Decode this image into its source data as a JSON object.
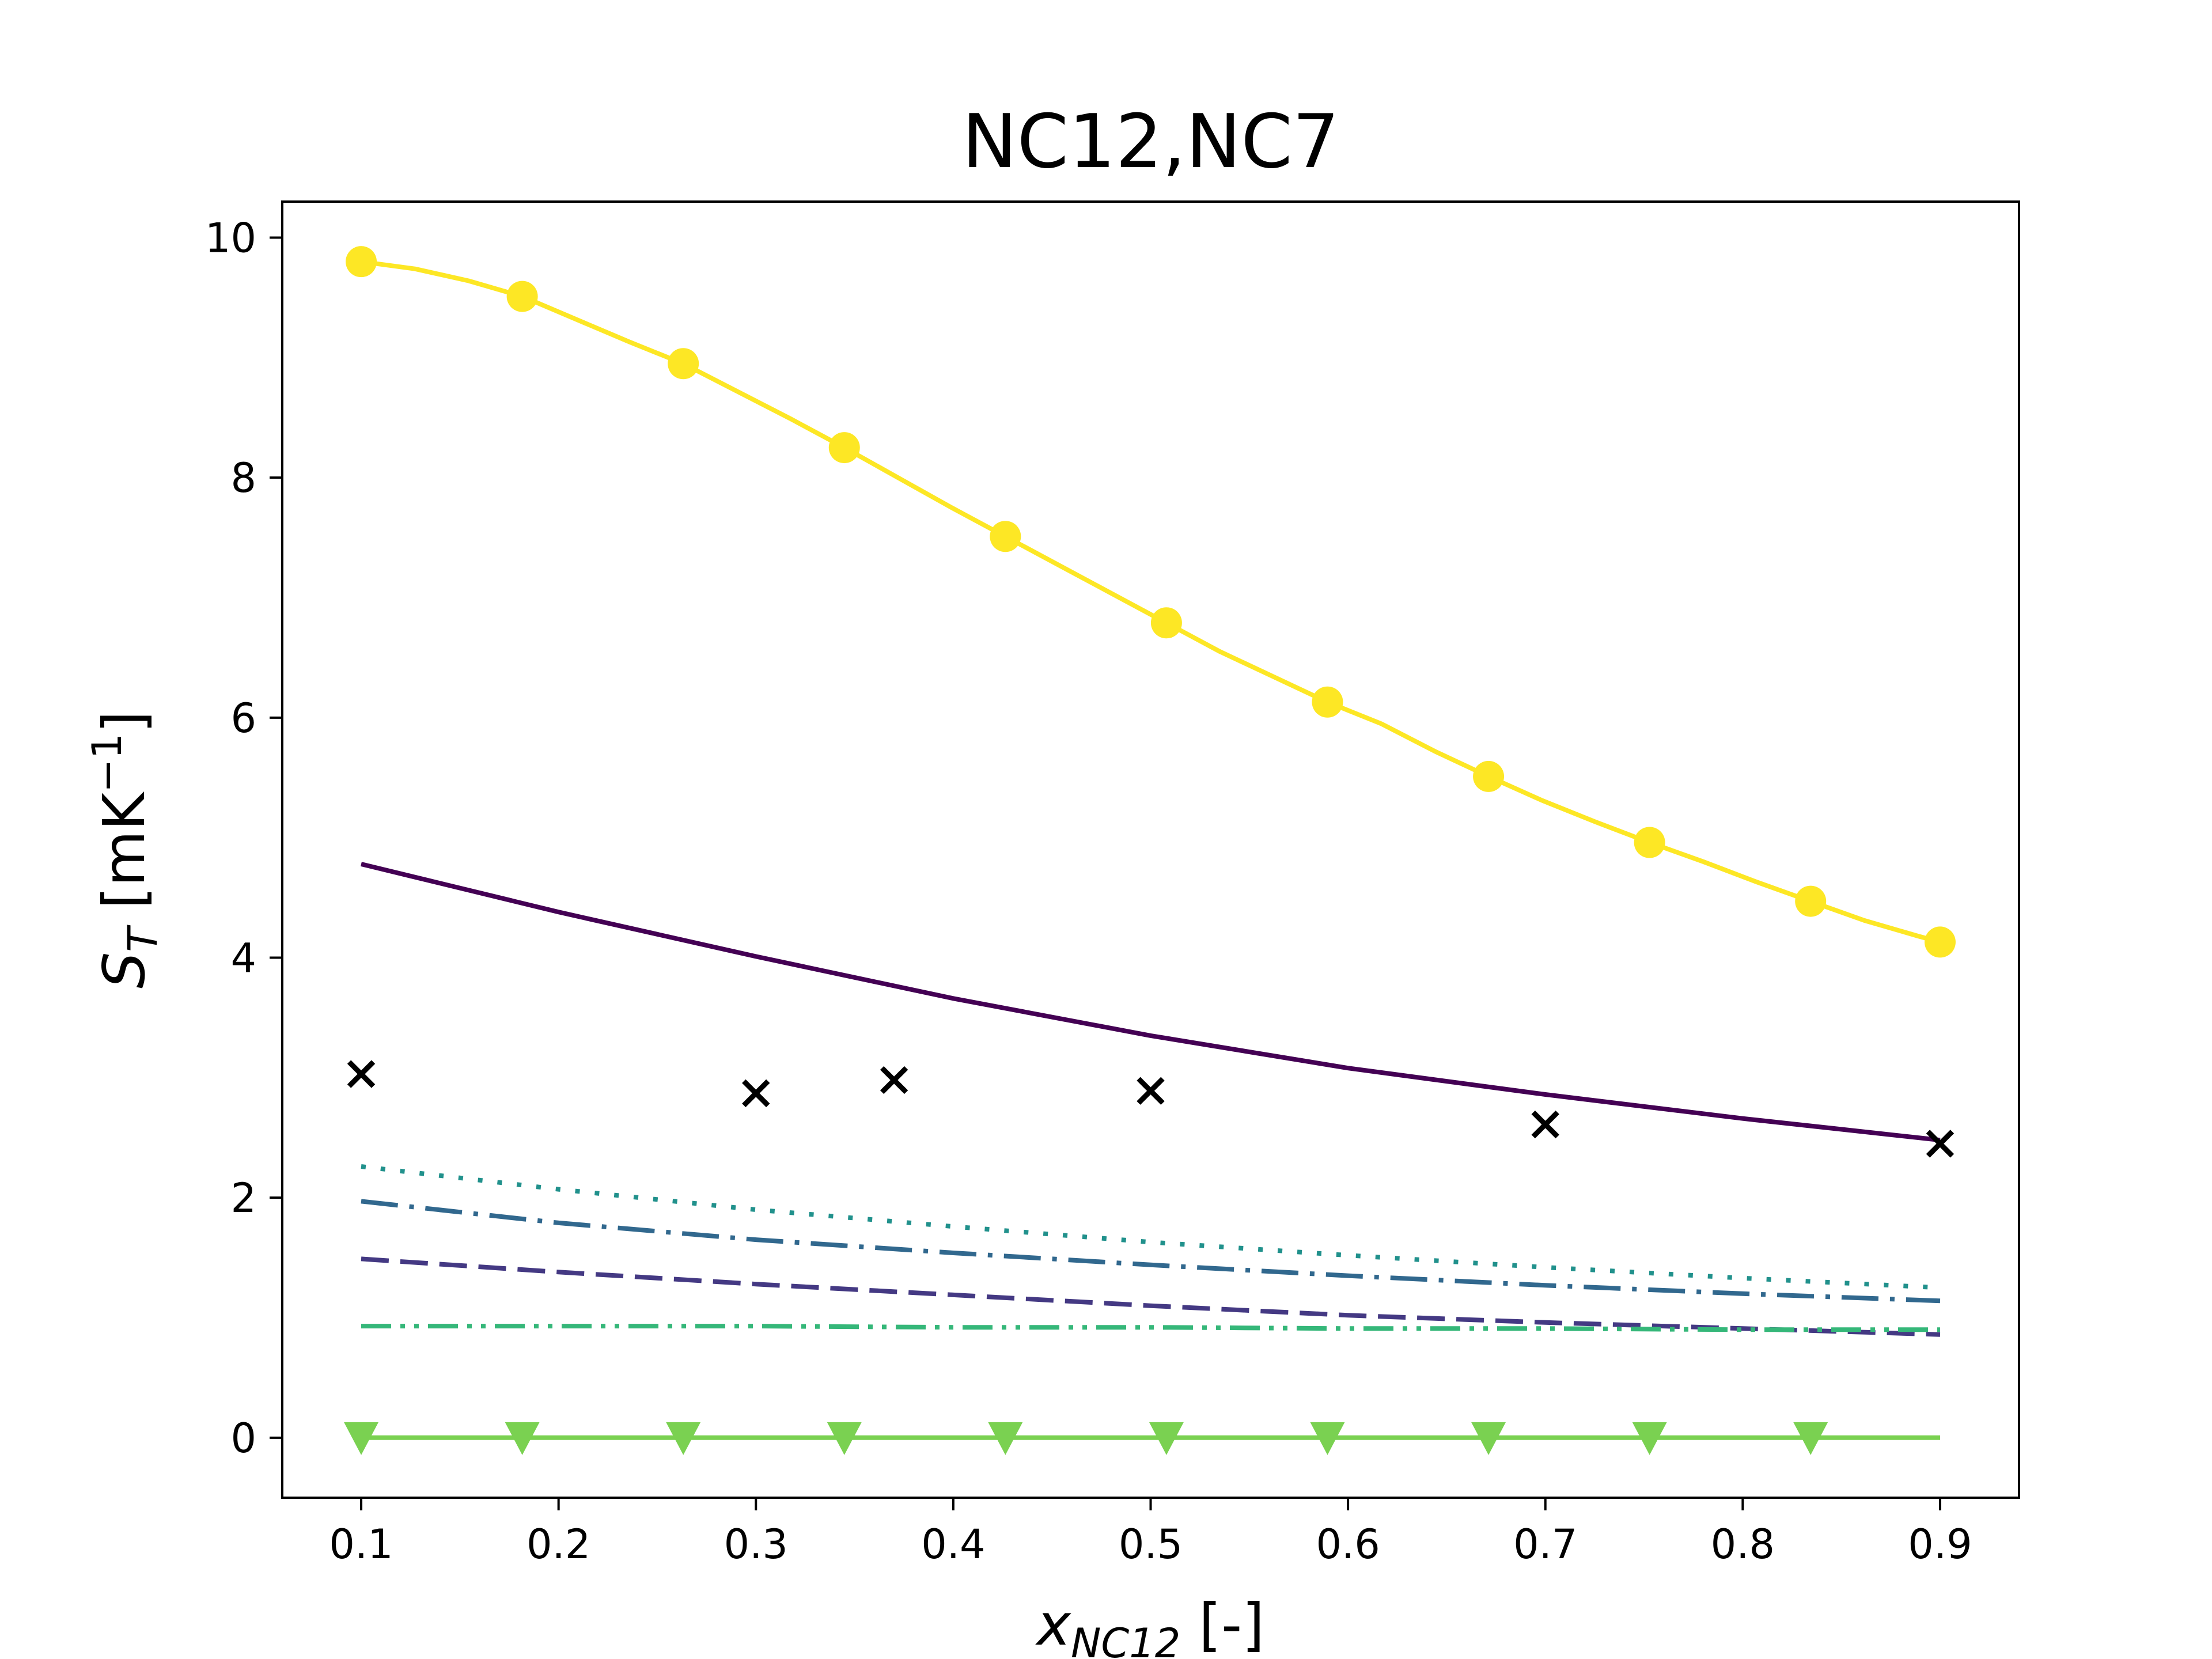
{
  "chart_data": {
    "type": "line",
    "title": "NC12,NC7",
    "xlabel": {
      "base": "x",
      "sub": "NC12",
      "suffix": " [-]"
    },
    "ylabel": {
      "base": "S",
      "sub": "T",
      "suffix": " [mK",
      "sup": "−1",
      "close": "]"
    },
    "xlim": [
      0.06,
      0.94
    ],
    "ylim": [
      -0.5,
      10.3
    ],
    "xticks": [
      0.1,
      0.2,
      0.3,
      0.4,
      0.5,
      0.6,
      0.7,
      0.8,
      0.9
    ],
    "yticks": [
      0,
      2,
      4,
      6,
      8,
      10
    ],
    "grid": false,
    "series": [
      {
        "color": "#fde725",
        "style": "solid",
        "marker": "circle",
        "marker_every": 3,
        "x": [
          0.1,
          0.1272,
          0.1544,
          0.1816,
          0.2088,
          0.236,
          0.2632,
          0.2904,
          0.3176,
          0.3448,
          0.372,
          0.3992,
          0.4264,
          0.4536,
          0.4808,
          0.508,
          0.5352,
          0.5624,
          0.5896,
          0.6168,
          0.644,
          0.6712,
          0.6984,
          0.7256,
          0.7528,
          0.78,
          0.8072,
          0.8344,
          0.8616,
          0.8888,
          0.9
        ],
        "y": [
          9.8,
          9.74,
          9.64,
          9.51,
          9.32,
          9.13,
          8.95,
          8.72,
          8.49,
          8.25,
          8.0,
          7.75,
          7.51,
          7.27,
          7.03,
          6.79,
          6.55,
          6.34,
          6.13,
          5.95,
          5.72,
          5.51,
          5.31,
          5.13,
          4.96,
          4.8,
          4.63,
          4.47,
          4.31,
          4.18,
          4.13
        ]
      },
      {
        "color": "#440154",
        "style": "solid",
        "marker": "none",
        "x": [
          0.1,
          0.2,
          0.3,
          0.4,
          0.5,
          0.6,
          0.7,
          0.8,
          0.9
        ],
        "y": [
          4.78,
          4.38,
          4.01,
          3.66,
          3.35,
          3.08,
          2.86,
          2.66,
          2.48
        ]
      },
      {
        "color": "#21918c",
        "style": "dotted",
        "marker": "none",
        "x": [
          0.1,
          0.2,
          0.3,
          0.4,
          0.5,
          0.6,
          0.7,
          0.8,
          0.9
        ],
        "y": [
          2.26,
          2.07,
          1.9,
          1.76,
          1.63,
          1.52,
          1.42,
          1.33,
          1.25
        ]
      },
      {
        "color": "#31688e",
        "style": "dashdot",
        "marker": "none",
        "x": [
          0.1,
          0.2,
          0.3,
          0.4,
          0.5,
          0.6,
          0.7,
          0.8,
          0.9
        ],
        "y": [
          1.97,
          1.79,
          1.65,
          1.54,
          1.44,
          1.35,
          1.27,
          1.2,
          1.14
        ]
      },
      {
        "color": "#443983",
        "style": "dashed",
        "marker": "none",
        "x": [
          0.1,
          0.2,
          0.3,
          0.4,
          0.5,
          0.6,
          0.7,
          0.8,
          0.9
        ],
        "y": [
          1.49,
          1.38,
          1.28,
          1.19,
          1.1,
          1.02,
          0.96,
          0.91,
          0.86
        ]
      },
      {
        "color": "#35b779",
        "style": "dashdotdot",
        "marker": "none",
        "x": [
          0.1,
          0.2,
          0.3,
          0.4,
          0.5,
          0.6,
          0.7,
          0.8,
          0.9
        ],
        "y": [
          0.93,
          0.93,
          0.93,
          0.92,
          0.92,
          0.91,
          0.91,
          0.9,
          0.9
        ]
      },
      {
        "color": "#7ad151",
        "style": "solid",
        "marker": "triangle-down",
        "marker_every": 1,
        "x": [
          0.1,
          0.1816,
          0.2632,
          0.3448,
          0.4264,
          0.508,
          0.5896,
          0.6712,
          0.7528,
          0.8344,
          0.9
        ],
        "y": [
          0,
          0,
          0,
          0,
          0,
          0,
          0,
          0,
          0,
          0,
          0
        ],
        "marker_x": [
          0.1,
          0.1816,
          0.2632,
          0.3448,
          0.4264,
          0.508,
          0.5896,
          0.6712,
          0.7528,
          0.8344
        ]
      }
    ],
    "scatter": {
      "color": "#000000",
      "marker": "x",
      "x": [
        0.1,
        0.3,
        0.37,
        0.5,
        0.7,
        0.9
      ],
      "y": [
        3.03,
        2.87,
        2.98,
        2.89,
        2.61,
        2.45
      ]
    }
  }
}
